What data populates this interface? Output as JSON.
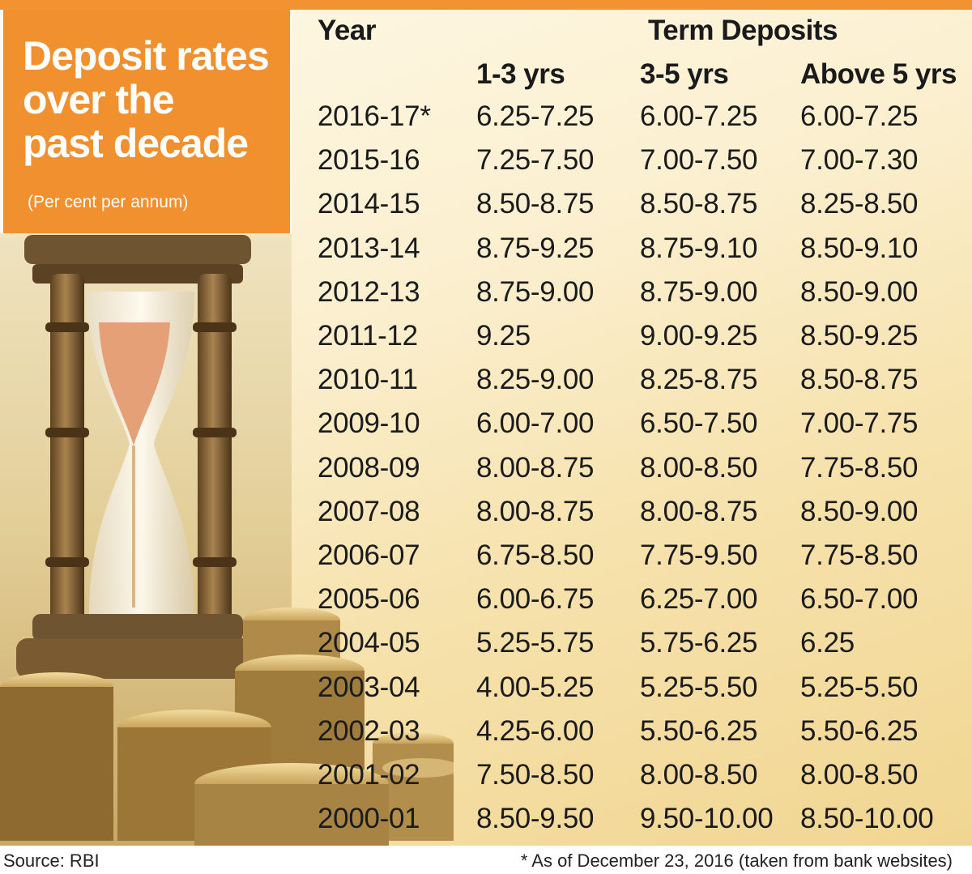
{
  "title_lines": [
    "Deposit rates",
    "over the",
    "past decade"
  ],
  "subtitle": "(Per cent per annum)",
  "table": {
    "year_header": "Year",
    "group_header": "Term Deposits",
    "col_headers": [
      "1-3 yrs",
      "3-5 yrs",
      "Above 5 yrs"
    ],
    "rows": [
      [
        "2016-17*",
        "6.25-7.25",
        "6.00-7.25",
        "6.00-7.25"
      ],
      [
        "2015-16",
        "7.25-7.50",
        "7.00-7.50",
        "7.00-7.30"
      ],
      [
        "2014-15",
        "8.50-8.75",
        "8.50-8.75",
        "8.25-8.50"
      ],
      [
        "2013-14",
        "8.75-9.25",
        "8.75-9.10",
        "8.50-9.10"
      ],
      [
        "2012-13",
        "8.75-9.00",
        "8.75-9.00",
        "8.50-9.00"
      ],
      [
        "2011-12",
        "9.25",
        "9.00-9.25",
        "8.50-9.25"
      ],
      [
        "2010-11",
        "8.25-9.00",
        "8.25-8.75",
        "8.50-8.75"
      ],
      [
        "2009-10",
        "6.00-7.00",
        "6.50-7.50",
        "7.00-7.75"
      ],
      [
        "2008-09",
        "8.00-8.75",
        "8.00-8.50",
        "7.75-8.50"
      ],
      [
        "2007-08",
        "8.00-8.75",
        "8.00-8.75",
        "8.50-9.00"
      ],
      [
        "2006-07",
        "6.75-8.50",
        "7.75-9.50",
        "7.75-8.50"
      ],
      [
        "2005-06",
        "6.00-6.75",
        "6.25-7.00",
        "6.50-7.00"
      ],
      [
        "2004-05",
        "5.25-5.75",
        "5.75-6.25",
        "6.25"
      ],
      [
        "2003-04",
        "4.00-5.25",
        "5.25-5.50",
        "5.25-5.50"
      ],
      [
        "2002-03",
        "4.25-6.00",
        "5.50-6.25",
        "5.50-6.25"
      ],
      [
        "2001-02",
        "7.50-8.50",
        "8.00-8.50",
        "8.00-8.50"
      ],
      [
        "2000-01",
        "8.50-9.50",
        "9.50-10.00",
        "8.50-10.00"
      ]
    ]
  },
  "footer": {
    "source": "Source: RBI",
    "note": "* As of December 23, 2016 (taken from bank websites)"
  },
  "chart_data": {
    "type": "table",
    "title": "Deposit rates over the past decade",
    "subtitle": "(Per cent per annum)",
    "columns": [
      "Year",
      "1-3 yrs",
      "3-5 yrs",
      "Above 5 yrs"
    ],
    "group_header": "Term Deposits",
    "rows": [
      [
        "2016-17*",
        "6.25-7.25",
        "6.00-7.25",
        "6.00-7.25"
      ],
      [
        "2015-16",
        "7.25-7.50",
        "7.00-7.50",
        "7.00-7.30"
      ],
      [
        "2014-15",
        "8.50-8.75",
        "8.50-8.75",
        "8.25-8.50"
      ],
      [
        "2013-14",
        "8.75-9.25",
        "8.75-9.10",
        "8.50-9.10"
      ],
      [
        "2012-13",
        "8.75-9.00",
        "8.75-9.00",
        "8.50-9.00"
      ],
      [
        "2011-12",
        "9.25",
        "9.00-9.25",
        "8.50-9.25"
      ],
      [
        "2010-11",
        "8.25-9.00",
        "8.25-8.75",
        "8.50-8.75"
      ],
      [
        "2009-10",
        "6.00-7.00",
        "6.50-7.50",
        "7.00-7.75"
      ],
      [
        "2008-09",
        "8.00-8.75",
        "8.00-8.50",
        "7.75-8.50"
      ],
      [
        "2007-08",
        "8.00-8.75",
        "8.00-8.75",
        "8.50-9.00"
      ],
      [
        "2006-07",
        "6.75-8.50",
        "7.75-9.50",
        "7.75-8.50"
      ],
      [
        "2005-06",
        "6.00-6.75",
        "6.25-7.00",
        "6.50-7.00"
      ],
      [
        "2004-05",
        "5.25-5.75",
        "5.75-6.25",
        "6.25"
      ],
      [
        "2003-04",
        "4.00-5.25",
        "5.25-5.50",
        "5.25-5.50"
      ],
      [
        "2002-03",
        "4.25-6.00",
        "5.50-6.25",
        "5.50-6.25"
      ],
      [
        "2001-02",
        "7.50-8.50",
        "8.00-8.50",
        "8.00-8.50"
      ],
      [
        "2000-01",
        "8.50-9.50",
        "9.50-10.00",
        "8.50-10.00"
      ]
    ]
  },
  "colors": {
    "accent": "#f1902f",
    "text": "#1b1b1b",
    "background": "#fdf3d8"
  }
}
